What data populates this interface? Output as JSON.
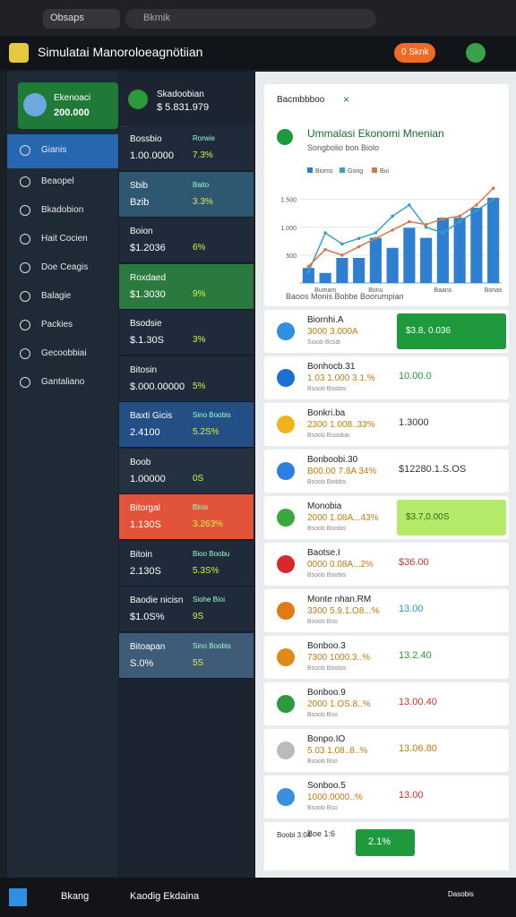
{
  "browser": {
    "tab": "Obsaps",
    "address": "Bkmik"
  },
  "header": {
    "title": "Simulatai Manoroloeagnötiian",
    "button": "0 Sknk"
  },
  "sidebar": {
    "balance_card": {
      "label": "Ekenoaci",
      "value": "200.000"
    },
    "menu": [
      "Gianis",
      "Beaopel",
      "Bkadobion",
      "Hait Cocien",
      "Doe Ceagis",
      "Balagie",
      "Packies",
      "Gecoobbiai",
      "Gantaliano"
    ]
  },
  "middle": {
    "header": {
      "name": "Skadoobian",
      "value": "$ 5.831.979"
    },
    "rows": [
      {
        "name": "Bossbio",
        "tag": "Rorwie",
        "value": "1.00.0000",
        "pct": "7.3%",
        "color": "#1f2b3a"
      },
      {
        "name": "Sbib",
        "tag": "Baito",
        "value": "Bzib",
        "pct": "3.3%",
        "color": "#2e5871"
      },
      {
        "name": "Boion",
        "tag": "",
        "value": "$1.2036",
        "pct": "6%",
        "color": "#1f2b3a"
      },
      {
        "name": "Roxdaed",
        "tag": "",
        "value": "$1.3030",
        "pct": "9%",
        "color": "#2a7a3f"
      },
      {
        "name": "Bsodsie",
        "tag": "",
        "value": "$.1.30S",
        "pct": "3%",
        "color": "#1f2b3a"
      },
      {
        "name": "Bitosin",
        "tag": "",
        "value": "$.000.00000",
        "pct": "5%",
        "color": "#1f2b3a"
      },
      {
        "name": "Baxti Gicis",
        "tag": "Sino Boobis",
        "value": "2.4100",
        "pct": "5.2S%",
        "color": "#244e86"
      },
      {
        "name": "Boob",
        "tag": "",
        "value": "1.00000",
        "pct": "0S",
        "color": "#243140"
      },
      {
        "name": "Bitorgal",
        "tag": "Binis",
        "value": "1.130S",
        "pct": "3.263%",
        "color": "#e2543a"
      },
      {
        "name": "Bitoin",
        "tag": "Bioo Boobu",
        "value": "2.130S",
        "pct": "5.3S%",
        "color": "#1f2b3a"
      },
      {
        "name": "Baodie nicisn",
        "tag": "Siohe Bioi",
        "value": "$1.0S%",
        "pct": "9S",
        "color": "#1f2b3a"
      },
      {
        "name": "Bitoapan",
        "tag": "Sino Boobis",
        "value": "S.0%",
        "pct": "5S",
        "color": "#3e5b78"
      }
    ]
  },
  "panel": {
    "tab": "Bacmbbboo",
    "items": [
      {
        "name": "Biornhi.A",
        "detail": "3000 3.000A",
        "sub": "Sioob Bcsdi",
        "value": "$3.8, 0.036",
        "icon": "#2f8fe0",
        "value_color": "#ffffff",
        "badge": "#1e9a3c"
      },
      {
        "name": "Bonhocb.31",
        "detail": "1.03 1.000 3.1.%",
        "sub": "Bsoob Boobis",
        "value": "10.00.0",
        "icon": "#1b6fd0",
        "value_color": "#1e9a3c",
        "badge": null
      },
      {
        "name": "Bonkri.ba",
        "detail": "2300 1.008..33%",
        "sub": "Bsoob Bsoobai",
        "value": "1.3000",
        "icon": "#f1b31c",
        "value_color": "#333333",
        "badge": null
      },
      {
        "name": "Bonboobi.30",
        "detail": "B00.00 7.8A 34%",
        "sub": "Bsoob Biobbs",
        "value": "$12280.1.S.OS",
        "icon": "#2f7fe0",
        "value_color": "#333333",
        "badge": null
      },
      {
        "name": "Monobia",
        "detail": "2000 1.08A...43%",
        "sub": "Bsoob Boobis",
        "value": "$3.7,0.00S",
        "icon": "#3aa83c",
        "value_color": "#2b6a1a",
        "badge": "#b6ea6a"
      },
      {
        "name": "Baotse.I",
        "detail": "0000 0.08A...2%",
        "sub": "Bsoob Boobis",
        "value": "$36.00",
        "icon": "#d8282e",
        "value_color": "#c8322b",
        "badge": null
      },
      {
        "name": "Monte nhan.RM",
        "detail": "3300 5.9.1.O8...%",
        "sub": "Bsoob Bso",
        "value": "13.00",
        "icon": "#e07a16",
        "value_color": "#2f8fd0",
        "badge": null
      },
      {
        "name": "Bonboo.3",
        "detail": "7300 1000.3..%",
        "sub": "Bsoob Boobis",
        "value": "13.2.40",
        "icon": "#e0881a",
        "value_color": "#1e9a3c",
        "badge": null
      },
      {
        "name": "Bonboo.9",
        "detail": "2000 1.OS.8..%",
        "sub": "Bsoob Bso",
        "value": "13.00.40",
        "icon": "#2c9a3a",
        "value_color": "#c8322b",
        "badge": null
      },
      {
        "name": "Bonpo.IO",
        "detail": "5.03 1.08..8..%",
        "sub": "Bsoob Bso",
        "value": "13.06.80",
        "icon": "#bbbbbb",
        "value_color": "#c07a10",
        "badge": null
      },
      {
        "name": "Sonboo.5",
        "detail": "1000.0000..%",
        "sub": "Bsoob Bso",
        "value": "13.00",
        "icon": "#3a8fe0",
        "value_color": "#c8322b",
        "badge": null
      }
    ],
    "footer": {
      "left": "Boobi 3:04",
      "right": "Boe 1:6",
      "badge": "2.1%"
    }
  },
  "taskbar": {
    "app1": "Bkang",
    "app2": "Kaodig Ekdaina",
    "tray": "Dasobis"
  },
  "chart_data": {
    "type": "bar",
    "title": "Ummalasi Ekonomi Mnenian",
    "subtitle": "Songbolio bon Biolo",
    "legend_note": "Baoos Monis Bobbe Boorumpian",
    "categories": [
      null,
      "Bumam",
      null,
      null,
      "Bonu",
      null,
      null,
      null,
      "Baans",
      null,
      null,
      "Bonas"
    ],
    "series": [
      {
        "name": "Bioms",
        "color": "#2f7fd0",
        "values": [
          270,
          180,
          450,
          450,
          810,
          630,
          990,
          810,
          1170,
          1170,
          1350,
          1530
        ]
      },
      {
        "name": "Gong",
        "color": "#3aa0c0",
        "type": "line",
        "values": [
          200,
          900,
          700,
          800,
          900,
          1200,
          1400,
          1000,
          900,
          1100,
          1300,
          1500
        ]
      },
      {
        "name": "Bui",
        "color": "#d07a50",
        "type": "line",
        "values": [
          300,
          600,
          500,
          650,
          800,
          950,
          1100,
          1050,
          1150,
          1200,
          1400,
          1700
        ]
      }
    ],
    "ylim": [
      0,
      1800
    ],
    "yticks": [
      500,
      {
        "value": 1000,
        "label": "1.000"
      },
      {
        "value": 1500,
        "label": "1.500"
      }
    ],
    "grid": true
  }
}
